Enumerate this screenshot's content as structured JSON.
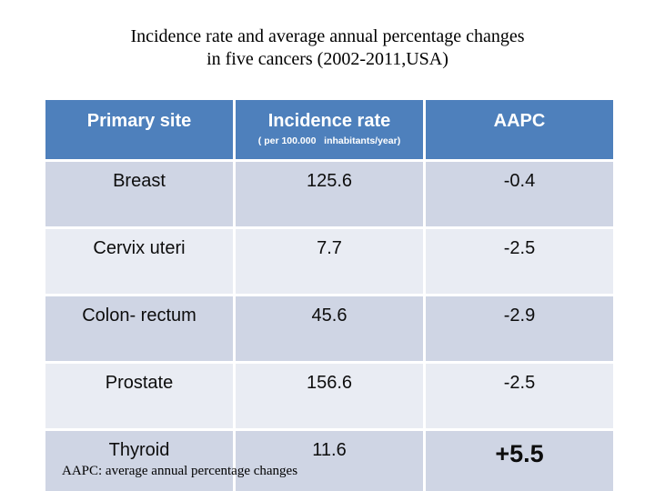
{
  "slide": {
    "title_line1": "Incidence rate and average annual percentage changes",
    "title_line2": "in five cancers (2002-2011,USA)"
  },
  "table": {
    "headers": [
      {
        "label": "Primary site"
      },
      {
        "label": "Incidence rate",
        "sublabel": "( per 100.000   inhabitants/year)"
      },
      {
        "label": "AAPC"
      }
    ],
    "rows": [
      {
        "site": "Breast",
        "incidence": "125.6",
        "aapc": "-0.4"
      },
      {
        "site": "Cervix uteri",
        "incidence": "7.7",
        "aapc": "-2.5"
      },
      {
        "site": "Colon- rectum",
        "incidence": "45.6",
        "aapc": "-2.9"
      },
      {
        "site": "Prostate",
        "incidence": "156.6",
        "aapc": "-2.5"
      },
      {
        "site": "Thyroid",
        "incidence": "11.6",
        "aapc": "+5.5"
      }
    ]
  },
  "footnote": {
    "text": "AAPC: average annual percentage changes"
  },
  "colors": {
    "header_bg": "#4e80bc",
    "row_odd_bg": "#cfd5e4",
    "row_even_bg": "#e9ecf3",
    "header_text": "#ffffff",
    "body_text": "#0d0d0d"
  }
}
